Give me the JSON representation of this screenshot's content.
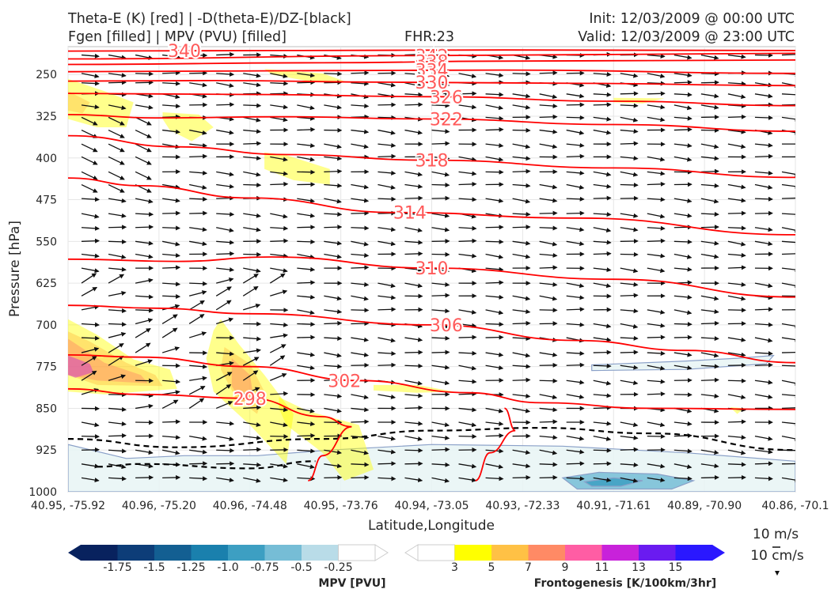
{
  "header": {
    "line1_left": "Theta-E (K) [red] | -D(theta-E)/DZ-[black]",
    "line2_left": "Fgen [filled] | MPV (PVU) [filled]",
    "fhr": "FHR:23",
    "init": "Init: 12/03/2009 @ 00:00 UTC",
    "valid": "Valid: 12/03/2009 @ 23:00 UTC"
  },
  "chart_data": {
    "type": "contour",
    "xlabel": "Latitude,Longitude",
    "ylabel": "Pressure [hPa]",
    "ylim": [
      1000,
      200
    ],
    "y_ticks": [
      250,
      325,
      400,
      475,
      550,
      625,
      700,
      775,
      850,
      925,
      1000
    ],
    "x_ticks": [
      "40.95, -75.92",
      "40.96, -75.20",
      "40.96, -74.48",
      "40.95, -73.76",
      "40.94, -73.05",
      "40.93, -72.33",
      "40.91, -71.61",
      "40.89, -70.90",
      "40.86, -70.1"
    ],
    "grid": true,
    "theta_e_contours": [
      {
        "label": "340",
        "color": "#ff0000",
        "points": [
          [
            0,
            208
          ],
          [
            0.3,
            207
          ],
          [
            0.6,
            206
          ],
          [
            1,
            207
          ]
        ]
      },
      {
        "label": "342",
        "color": "#ff0000",
        "points": [
          [
            0,
            222
          ],
          [
            0.5,
            216
          ],
          [
            1,
            212
          ]
        ]
      },
      {
        "label": "338",
        "color": "#ff0000",
        "points": [
          [
            0,
            232
          ],
          [
            0.35,
            229
          ],
          [
            0.6,
            226
          ],
          [
            1,
            224
          ]
        ]
      },
      {
        "label": "334",
        "color": "#ff0000",
        "points": [
          [
            0,
            245
          ],
          [
            0.35,
            243
          ],
          [
            0.6,
            242
          ],
          [
            1,
            248
          ]
        ]
      },
      {
        "label": "330",
        "color": "#ff0000",
        "points": [
          [
            0,
            262
          ],
          [
            0.2,
            261
          ],
          [
            0.45,
            264
          ],
          [
            0.7,
            266
          ],
          [
            1,
            270
          ]
        ]
      },
      {
        "label": "326",
        "color": "#ff0000",
        "points": [
          [
            0,
            284
          ],
          [
            0.25,
            286
          ],
          [
            0.5,
            290
          ],
          [
            0.75,
            298
          ],
          [
            1,
            306
          ]
        ]
      },
      {
        "label": "322",
        "color": "#ff0000",
        "points": [
          [
            0,
            322
          ],
          [
            0.12,
            328
          ],
          [
            0.3,
            326
          ],
          [
            0.5,
            330
          ],
          [
            0.75,
            340
          ],
          [
            1,
            352
          ]
        ]
      },
      {
        "label": "318",
        "color": "#ff0000",
        "points": [
          [
            0,
            360
          ],
          [
            0.15,
            380
          ],
          [
            0.3,
            394
          ],
          [
            0.5,
            404
          ],
          [
            0.75,
            418
          ],
          [
            1,
            435
          ]
        ]
      },
      {
        "label": "314",
        "color": "#ff0000",
        "points": [
          [
            0,
            436
          ],
          [
            0.1,
            450
          ],
          [
            0.25,
            472
          ],
          [
            0.45,
            498
          ],
          [
            0.7,
            508
          ],
          [
            1,
            538
          ]
        ]
      },
      {
        "label": "310",
        "color": "#ff0000",
        "points": [
          [
            0,
            582
          ],
          [
            0.15,
            586
          ],
          [
            0.28,
            578
          ],
          [
            0.5,
            598
          ],
          [
            0.75,
            618
          ],
          [
            1,
            650
          ]
        ]
      },
      {
        "label": "306",
        "color": "#ff0000",
        "points": [
          [
            0,
            665
          ],
          [
            0.12,
            670
          ],
          [
            0.25,
            680
          ],
          [
            0.5,
            700
          ],
          [
            0.7,
            728
          ],
          [
            0.85,
            746
          ],
          [
            1,
            768
          ]
        ]
      },
      {
        "label": "302",
        "color": "#ff0000",
        "points": [
          [
            0,
            754
          ],
          [
            0.1,
            758
          ],
          [
            0.25,
            775
          ],
          [
            0.4,
            800
          ],
          [
            0.55,
            822
          ],
          [
            0.65,
            840
          ],
          [
            0.8,
            850
          ],
          [
            1,
            852
          ]
        ]
      },
      {
        "label": "298",
        "color": "#ff0000",
        "points": [
          [
            0,
            815
          ],
          [
            0.1,
            825
          ],
          [
            0.25,
            832
          ],
          [
            0.35,
            865
          ],
          [
            0.39,
            883
          ],
          [
            0.35,
            935
          ],
          [
            0.33,
            980
          ]
        ]
      },
      {
        "label": "",
        "color": "#ff0000",
        "points": [
          [
            0.6,
            850
          ],
          [
            0.615,
            890
          ],
          [
            0.58,
            930
          ],
          [
            0.56,
            980
          ]
        ]
      }
    ],
    "stability_contours": [
      {
        "label": "",
        "style": "dashed",
        "color": "#000000",
        "points": [
          [
            0,
            905
          ],
          [
            0.15,
            920
          ],
          [
            0.35,
            905
          ],
          [
            0.5,
            890
          ],
          [
            0.65,
            885
          ],
          [
            0.8,
            895
          ],
          [
            1,
            925
          ]
        ]
      },
      {
        "label": "",
        "style": "dashed",
        "color": "#000000",
        "points": [
          [
            0.04,
            955
          ],
          [
            0.1,
            950
          ],
          [
            0.25,
            958
          ],
          [
            0.34,
            945
          ]
        ]
      }
    ],
    "fgen_levels": [
      3,
      5,
      7,
      9,
      11,
      13,
      15
    ],
    "fgen_colors": [
      "#ffff00",
      "#ffc145",
      "#ff8a65",
      "#ff5da4",
      "#c822da",
      "#6a1bf0",
      "#2a18ff"
    ],
    "mpv_levels": [
      -1.75,
      -1.5,
      -1.25,
      -1.0,
      -0.75,
      -0.5,
      -0.25
    ],
    "mpv_colors": [
      "#08225e",
      "#0d3d78",
      "#135f92",
      "#1a80ad",
      "#3d9fc2",
      "#76bdd6",
      "#b9dce8"
    ],
    "fgen_regions": [
      {
        "level": 3,
        "points": [
          [
            0,
            258
          ],
          [
            0.05,
            280
          ],
          [
            0.09,
            300
          ],
          [
            0.08,
            345
          ],
          [
            0.04,
            345
          ],
          [
            0,
            330
          ]
        ]
      },
      {
        "level": 5,
        "points": [
          [
            0,
            280
          ],
          [
            0.03,
            300
          ],
          [
            0.02,
            320
          ],
          [
            0,
            315
          ]
        ]
      },
      {
        "level": 3,
        "points": [
          [
            0.13,
            318
          ],
          [
            0.18,
            322
          ],
          [
            0.2,
            345
          ],
          [
            0.17,
            370
          ],
          [
            0.14,
            350
          ],
          [
            0.13,
            330
          ]
        ]
      },
      {
        "level": 3,
        "points": [
          [
            0.27,
            240
          ],
          [
            0.35,
            248
          ],
          [
            0.38,
            262
          ],
          [
            0.33,
            262
          ],
          [
            0.28,
            250
          ]
        ]
      },
      {
        "level": 3,
        "points": [
          [
            0.27,
            390
          ],
          [
            0.3,
            395
          ],
          [
            0.36,
            420
          ],
          [
            0.36,
            448
          ],
          [
            0.31,
            440
          ],
          [
            0.27,
            420
          ]
        ]
      },
      {
        "level": 3,
        "points": [
          [
            0.75,
            292
          ],
          [
            0.82,
            293
          ],
          [
            0.79,
            302
          ],
          [
            0.75,
            300
          ]
        ]
      },
      {
        "level": 3,
        "points": [
          [
            0,
            690
          ],
          [
            0.04,
            718
          ],
          [
            0.09,
            762
          ],
          [
            0.14,
            780
          ],
          [
            0.15,
            815
          ],
          [
            0.05,
            825
          ],
          [
            0,
            820
          ]
        ]
      },
      {
        "level": 5,
        "points": [
          [
            0,
            712
          ],
          [
            0.03,
            730
          ],
          [
            0.08,
            768
          ],
          [
            0.12,
            790
          ],
          [
            0.13,
            810
          ],
          [
            0.04,
            808
          ],
          [
            0,
            790
          ]
        ]
      },
      {
        "level": 7,
        "points": [
          [
            0,
            725
          ],
          [
            0.05,
            768
          ],
          [
            0.1,
            790
          ],
          [
            0.11,
            805
          ],
          [
            0.04,
            800
          ],
          [
            0,
            790
          ]
        ]
      },
      {
        "level": 11,
        "points": [
          [
            0,
            755
          ],
          [
            0.03,
            770
          ],
          [
            0.035,
            785
          ],
          [
            0.01,
            795
          ],
          [
            0,
            790
          ]
        ]
      },
      {
        "level": 3,
        "points": [
          [
            0.21,
            690
          ],
          [
            0.235,
            735
          ],
          [
            0.27,
            790
          ],
          [
            0.31,
            860
          ],
          [
            0.3,
            950
          ],
          [
            0.25,
            880
          ],
          [
            0.2,
            820
          ],
          [
            0.19,
            760
          ],
          [
            0.2,
            710
          ]
        ]
      },
      {
        "level": 5,
        "points": [
          [
            0.215,
            740
          ],
          [
            0.25,
            770
          ],
          [
            0.27,
            820
          ],
          [
            0.26,
            860
          ],
          [
            0.23,
            830
          ],
          [
            0.21,
            780
          ]
        ]
      },
      {
        "level": 7,
        "points": [
          [
            0.225,
            760
          ],
          [
            0.25,
            790
          ],
          [
            0.255,
            830
          ],
          [
            0.24,
            840
          ],
          [
            0.225,
            810
          ]
        ]
      },
      {
        "level": 3,
        "points": [
          [
            0.42,
            808
          ],
          [
            0.48,
            808
          ],
          [
            0.53,
            820
          ],
          [
            0.48,
            822
          ],
          [
            0.42,
            818
          ]
        ]
      },
      {
        "level": 3,
        "points": [
          [
            0.29,
            830
          ],
          [
            0.33,
            855
          ],
          [
            0.4,
            880
          ],
          [
            0.42,
            960
          ],
          [
            0.38,
            980
          ],
          [
            0.35,
            930
          ],
          [
            0.3,
            880
          ],
          [
            0.29,
            850
          ]
        ]
      },
      {
        "level": 3,
        "points": [
          [
            0.91,
            848
          ],
          [
            0.93,
            850
          ],
          [
            0.92,
            860
          ]
        ]
      }
    ],
    "mpv_regions": [
      {
        "level": -0.25,
        "points": [
          [
            0,
            915
          ],
          [
            0.08,
            940
          ],
          [
            0.16,
            935
          ],
          [
            0.26,
            935
          ],
          [
            0.36,
            925
          ],
          [
            0.5,
            915
          ],
          [
            0.68,
            918
          ],
          [
            0.85,
            930
          ],
          [
            1,
            945
          ],
          [
            1,
            1000
          ],
          [
            0,
            1000
          ]
        ]
      },
      {
        "level": -0.25,
        "points": [
          [
            0.72,
            772
          ],
          [
            0.85,
            765
          ],
          [
            0.92,
            760
          ],
          [
            0.97,
            755
          ],
          [
            0.96,
            770
          ],
          [
            0.85,
            780
          ],
          [
            0.72,
            782
          ]
        ]
      },
      {
        "level": -0.5,
        "points": [
          [
            0.68,
            975
          ],
          [
            0.73,
            965
          ],
          [
            0.81,
            968
          ],
          [
            0.86,
            980
          ],
          [
            0.83,
            995
          ],
          [
            0.7,
            995
          ]
        ]
      },
      {
        "level": -0.75,
        "points": [
          [
            0.71,
            982
          ],
          [
            0.75,
            975
          ],
          [
            0.79,
            980
          ],
          [
            0.76,
            990
          ],
          [
            0.72,
            990
          ]
        ]
      }
    ]
  },
  "colorbars": {
    "mpv_label": "MPV [PVU]",
    "mpv_ticks": [
      "-1.75",
      "-1.5",
      "-1.25",
      "-1.0",
      "-0.75",
      "-0.5",
      "-0.25"
    ],
    "fgen_label": "Frontogenesis [K/100km/3hr]",
    "fgen_ticks": [
      "3",
      "5",
      "7",
      "9",
      "11",
      "13",
      "15"
    ]
  },
  "vector_key": {
    "horizontal": "10 m/s",
    "vertical": "10 cm/s"
  }
}
